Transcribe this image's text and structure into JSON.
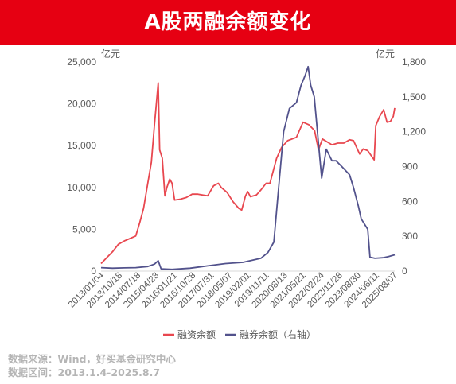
{
  "header": {
    "title": "A股两融余额变化"
  },
  "footer": {
    "source": "数据来源：Wind，好买基金研究中心",
    "period": "数据区间：2013.1.4-2025.8.7"
  },
  "colors": {
    "brand": "#e60012",
    "financing": "#e8474f",
    "securities_lending": "#52528c",
    "axis_text": "#595959",
    "footer_text": "#b5b5b5"
  },
  "chart_data": {
    "type": "line",
    "left_axis": {
      "unit": "亿元",
      "ticks": [
        "0",
        "5,000",
        "10,000",
        "15,000",
        "20,000",
        "25,000"
      ],
      "ylim": [
        0,
        25000
      ]
    },
    "right_axis": {
      "unit": "亿元",
      "ticks": [
        "0",
        "300",
        "600",
        "900",
        "1,200",
        "1,500",
        "1,800"
      ],
      "ylim": [
        0,
        1800
      ]
    },
    "x_start": "2013-01-04",
    "x_end": "2025-08-07",
    "x_ticks": [
      "2013/01/04",
      "2013/10/18",
      "2014/07/18",
      "2015/04/23",
      "2016/01/21",
      "2016/10/28",
      "2017/07/31",
      "2018/05/07",
      "2019/02/01",
      "2019/11/11",
      "2020/08/13",
      "2021/05/21",
      "2022/02/24",
      "2022/11/28",
      "2023/08/30",
      "2024/06/11",
      "2025/08/07"
    ],
    "legend_position": "bottom",
    "grid": false,
    "series": [
      {
        "name": "融资余额",
        "axis": "left",
        "color": "#e8474f",
        "points": [
          [
            "2013-01-04",
            900
          ],
          [
            "2013-04-01",
            1600
          ],
          [
            "2013-07-01",
            2300
          ],
          [
            "2013-10-01",
            3200
          ],
          [
            "2014-01-02",
            3600
          ],
          [
            "2014-04-01",
            3900
          ],
          [
            "2014-07-01",
            4200
          ],
          [
            "2014-09-01",
            5800
          ],
          [
            "2014-11-01",
            7500
          ],
          [
            "2015-01-05",
            10500
          ],
          [
            "2015-03-02",
            13000
          ],
          [
            "2015-04-20",
            17500
          ],
          [
            "2015-06-18",
            22500
          ],
          [
            "2015-07-10",
            14500
          ],
          [
            "2015-08-20",
            13500
          ],
          [
            "2015-09-30",
            9000
          ],
          [
            "2015-11-01",
            10000
          ],
          [
            "2015-12-15",
            11000
          ],
          [
            "2016-01-21",
            10500
          ],
          [
            "2016-02-29",
            8500
          ],
          [
            "2016-06-01",
            8600
          ],
          [
            "2016-09-01",
            8800
          ],
          [
            "2016-12-01",
            9200
          ],
          [
            "2017-03-01",
            9200
          ],
          [
            "2017-07-31",
            9000
          ],
          [
            "2017-11-01",
            10200
          ],
          [
            "2018-01-15",
            10500
          ],
          [
            "2018-03-01",
            10000
          ],
          [
            "2018-06-01",
            9400
          ],
          [
            "2018-09-01",
            8300
          ],
          [
            "2018-12-01",
            7500
          ],
          [
            "2019-01-15",
            7300
          ],
          [
            "2019-03-15",
            9000
          ],
          [
            "2019-04-20",
            9500
          ],
          [
            "2019-06-01",
            8900
          ],
          [
            "2019-09-01",
            9100
          ],
          [
            "2019-11-11",
            9700
          ],
          [
            "2020-02-01",
            10500
          ],
          [
            "2020-04-01",
            10500
          ],
          [
            "2020-07-15",
            13500
          ],
          [
            "2020-10-01",
            14800
          ],
          [
            "2021-01-04",
            15600
          ],
          [
            "2021-05-21",
            16000
          ],
          [
            "2021-09-01",
            17800
          ],
          [
            "2021-12-01",
            17500
          ],
          [
            "2022-03-01",
            16800
          ],
          [
            "2022-05-01",
            14500
          ],
          [
            "2022-07-01",
            15800
          ],
          [
            "2022-11-28",
            15100
          ],
          [
            "2023-03-01",
            15300
          ],
          [
            "2023-06-01",
            15300
          ],
          [
            "2023-08-30",
            15700
          ],
          [
            "2023-11-01",
            15600
          ],
          [
            "2024-02-05",
            14000
          ],
          [
            "2024-04-01",
            14600
          ],
          [
            "2024-06-11",
            14400
          ],
          [
            "2024-09-20",
            13300
          ],
          [
            "2024-10-15",
            17400
          ],
          [
            "2024-12-15",
            18500
          ],
          [
            "2025-02-15",
            19300
          ],
          [
            "2025-04-08",
            17800
          ],
          [
            "2025-06-01",
            17900
          ],
          [
            "2025-07-15",
            18500
          ],
          [
            "2025-08-07",
            19500
          ]
        ]
      },
      {
        "name": "融券余额（右轴）",
        "axis": "right",
        "color": "#52528c",
        "points": [
          [
            "2013-01-04",
            30
          ],
          [
            "2013-07-01",
            25
          ],
          [
            "2014-01-02",
            28
          ],
          [
            "2014-07-01",
            30
          ],
          [
            "2015-01-05",
            40
          ],
          [
            "2015-04-20",
            60
          ],
          [
            "2015-06-18",
            90
          ],
          [
            "2015-08-01",
            20
          ],
          [
            "2016-01-21",
            15
          ],
          [
            "2016-10-28",
            25
          ],
          [
            "2017-07-31",
            45
          ],
          [
            "2018-05-07",
            65
          ],
          [
            "2019-02-01",
            75
          ],
          [
            "2019-11-11",
            110
          ],
          [
            "2020-03-01",
            160
          ],
          [
            "2020-06-01",
            250
          ],
          [
            "2020-08-13",
            700
          ],
          [
            "2020-11-01",
            1200
          ],
          [
            "2021-02-01",
            1400
          ],
          [
            "2021-05-21",
            1450
          ],
          [
            "2021-08-01",
            1600
          ],
          [
            "2021-10-01",
            1680
          ],
          [
            "2021-11-20",
            1760
          ],
          [
            "2021-12-30",
            1600
          ],
          [
            "2022-02-24",
            1500
          ],
          [
            "2022-05-01",
            1100
          ],
          [
            "2022-06-20",
            800
          ],
          [
            "2022-09-01",
            1050
          ],
          [
            "2022-11-28",
            950
          ],
          [
            "2023-02-01",
            950
          ],
          [
            "2023-05-01",
            900
          ],
          [
            "2023-08-30",
            830
          ],
          [
            "2023-11-01",
            720
          ],
          [
            "2024-01-15",
            560
          ],
          [
            "2024-03-01",
            450
          ],
          [
            "2024-06-11",
            360
          ],
          [
            "2024-07-15",
            120
          ],
          [
            "2024-10-01",
            110
          ],
          [
            "2025-02-01",
            115
          ],
          [
            "2025-05-01",
            125
          ],
          [
            "2025-08-07",
            140
          ]
        ]
      }
    ]
  }
}
